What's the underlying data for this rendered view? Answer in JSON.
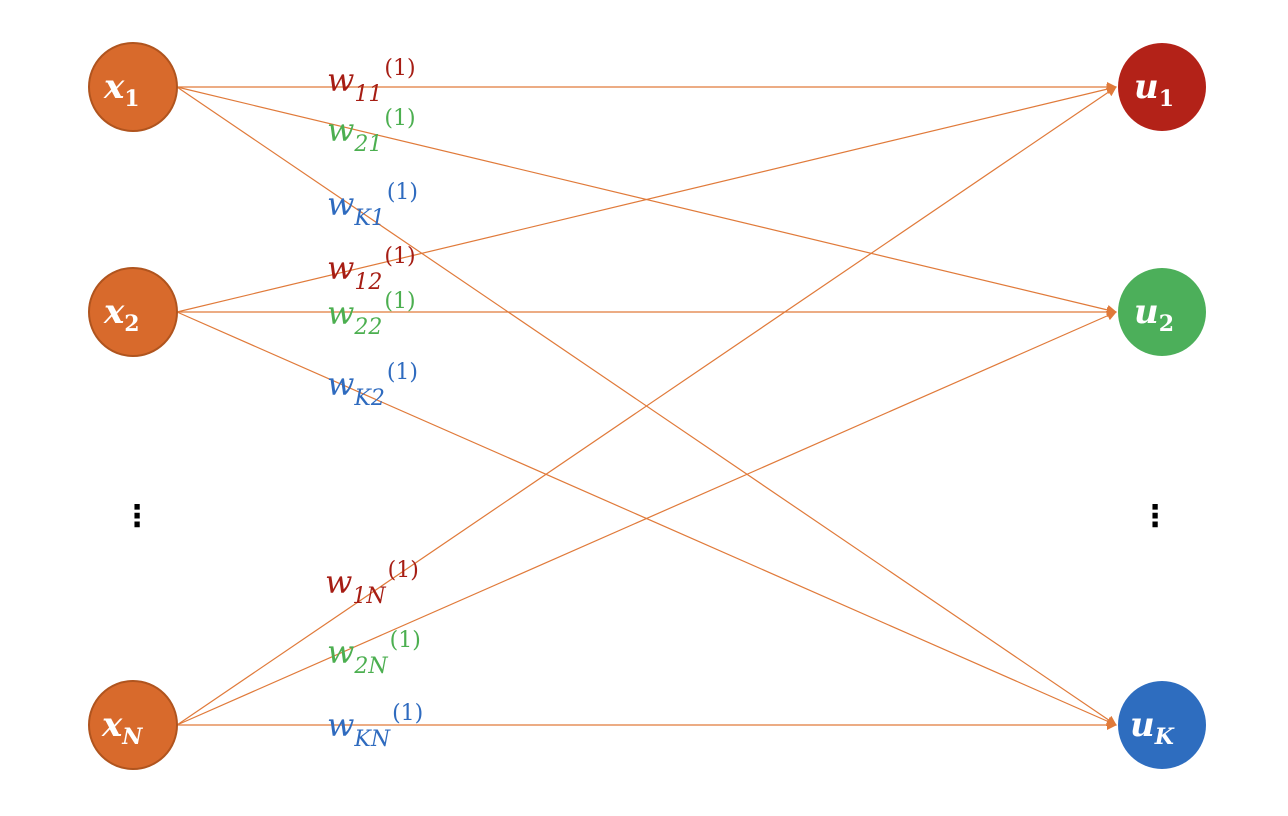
{
  "colors": {
    "edge": "#e07a3a",
    "input_node": "#d86a2c",
    "input_node_stroke": "#b0541e",
    "output_red": "#b32218",
    "output_green": "#4caf5a",
    "output_blue": "#2e6dbf",
    "label_red": "#a61d14",
    "label_green": "#4caf50",
    "label_blue": "#2f6bbf"
  },
  "inputs": [
    {
      "id": "x1",
      "symbol": "x",
      "sub": "1"
    },
    {
      "id": "x2",
      "symbol": "x",
      "sub": "2"
    },
    {
      "id": "xN",
      "symbol": "x",
      "sub": "N"
    }
  ],
  "outputs": [
    {
      "id": "u1",
      "symbol": "u",
      "sub": "1"
    },
    {
      "id": "u2",
      "symbol": "u",
      "sub": "2"
    },
    {
      "id": "uK",
      "symbol": "u",
      "sub": "K"
    }
  ],
  "ellipsis": {
    "left": "⋮",
    "right": "⋮"
  },
  "weights": [
    {
      "symbol": "w",
      "sub": "11",
      "sup": "(1)",
      "color": "red"
    },
    {
      "symbol": "w",
      "sub": "21",
      "sup": "(1)",
      "color": "green"
    },
    {
      "symbol": "w",
      "sub": "K1",
      "sup": "(1)",
      "color": "blue"
    },
    {
      "symbol": "w",
      "sub": "12",
      "sup": "(1)",
      "color": "red"
    },
    {
      "symbol": "w",
      "sub": "22",
      "sup": "(1)",
      "color": "green"
    },
    {
      "symbol": "w",
      "sub": "K2",
      "sup": "(1)",
      "color": "blue"
    },
    {
      "symbol": "w",
      "sub": "1N",
      "sup": "(1)",
      "color": "red"
    },
    {
      "symbol": "w",
      "sub": "2N",
      "sup": "(1)",
      "color": "green"
    },
    {
      "symbol": "w",
      "sub": "KN",
      "sup": "(1)",
      "color": "blue"
    }
  ]
}
